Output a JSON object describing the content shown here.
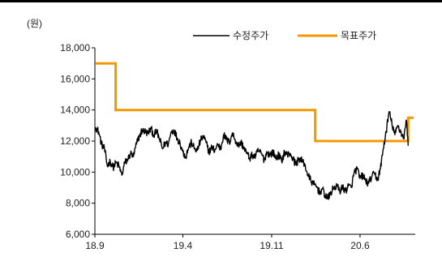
{
  "chart_data": {
    "type": "line",
    "unit_label": "(원)",
    "title": "",
    "xlabel": "",
    "ylabel": "",
    "ylim": [
      6000,
      18000
    ],
    "y_ticks": [
      6000,
      8000,
      10000,
      12000,
      14000,
      16000,
      18000
    ],
    "y_tick_labels": [
      "6,000",
      "8,000",
      "10,000",
      "12,000",
      "14,000",
      "16,000",
      "18,000"
    ],
    "x_ticks": [
      "18.9",
      "19.4",
      "19.11",
      "20.6"
    ],
    "legend_position": "top-right",
    "grid": false,
    "series": [
      {
        "name": "수정주가",
        "color": "#000000",
        "points": [
          [
            "2018-09-03",
            12900
          ],
          [
            "2018-09-10",
            12600
          ],
          [
            "2018-09-17",
            11800
          ],
          [
            "2018-09-24",
            11500
          ],
          [
            "2018-10-01",
            10400
          ],
          [
            "2018-10-08",
            10700
          ],
          [
            "2018-10-15",
            10300
          ],
          [
            "2018-10-22",
            10600
          ],
          [
            "2018-10-29",
            10400
          ],
          [
            "2018-11-05",
            9800
          ],
          [
            "2018-11-12",
            10600
          ],
          [
            "2018-11-19",
            10800
          ],
          [
            "2018-11-26",
            11200
          ],
          [
            "2018-12-03",
            11000
          ],
          [
            "2018-12-10",
            11800
          ],
          [
            "2018-12-17",
            12300
          ],
          [
            "2018-12-24",
            12700
          ],
          [
            "2019-01-07",
            12500
          ],
          [
            "2019-01-14",
            12800
          ],
          [
            "2019-01-21",
            12400
          ],
          [
            "2019-01-28",
            12600
          ],
          [
            "2019-02-04",
            12100
          ],
          [
            "2019-02-11",
            11500
          ],
          [
            "2019-02-18",
            11900
          ],
          [
            "2019-02-25",
            11800
          ],
          [
            "2019-03-04",
            12600
          ],
          [
            "2019-03-11",
            12700
          ],
          [
            "2019-03-18",
            12200
          ],
          [
            "2019-03-25",
            11900
          ],
          [
            "2019-04-01",
            11300
          ],
          [
            "2019-04-08",
            11000
          ],
          [
            "2019-04-15",
            11600
          ],
          [
            "2019-04-22",
            11900
          ],
          [
            "2019-04-29",
            11500
          ],
          [
            "2019-05-06",
            11400
          ],
          [
            "2019-05-13",
            12000
          ],
          [
            "2019-05-20",
            12300
          ],
          [
            "2019-05-27",
            11900
          ],
          [
            "2019-06-03",
            11300
          ],
          [
            "2019-06-10",
            11600
          ],
          [
            "2019-06-17",
            11400
          ],
          [
            "2019-06-24",
            11800
          ],
          [
            "2019-07-01",
            11500
          ],
          [
            "2019-07-08",
            12400
          ],
          [
            "2019-07-15",
            12100
          ],
          [
            "2019-07-22",
            11900
          ],
          [
            "2019-07-29",
            12500
          ],
          [
            "2019-08-05",
            12100
          ],
          [
            "2019-08-12",
            11700
          ],
          [
            "2019-08-19",
            11900
          ],
          [
            "2019-08-26",
            11600
          ],
          [
            "2019-09-02",
            11200
          ],
          [
            "2019-09-09",
            10900
          ],
          [
            "2019-09-16",
            11100
          ],
          [
            "2019-09-23",
            11000
          ],
          [
            "2019-09-30",
            11400
          ],
          [
            "2019-10-07",
            11200
          ],
          [
            "2019-10-14",
            10800
          ],
          [
            "2019-10-21",
            11300
          ],
          [
            "2019-10-28",
            11100
          ],
          [
            "2019-11-04",
            11300
          ],
          [
            "2019-11-11",
            10900
          ],
          [
            "2019-11-18",
            11100
          ],
          [
            "2019-11-25",
            10700
          ],
          [
            "2019-12-02",
            11300
          ],
          [
            "2019-12-09",
            11100
          ],
          [
            "2019-12-16",
            11200
          ],
          [
            "2019-12-23",
            10800
          ],
          [
            "2019-12-30",
            10500
          ],
          [
            "2020-01-06",
            10900
          ],
          [
            "2020-01-13",
            10700
          ],
          [
            "2020-01-20",
            10500
          ],
          [
            "2020-01-27",
            9800
          ],
          [
            "2020-02-03",
            9500
          ],
          [
            "2020-02-10",
            9200
          ],
          [
            "2020-02-17",
            9100
          ],
          [
            "2020-02-24",
            8700
          ],
          [
            "2020-03-02",
            8900
          ],
          [
            "2020-03-09",
            8500
          ],
          [
            "2020-03-16",
            8300
          ],
          [
            "2020-03-23",
            8700
          ],
          [
            "2020-03-30",
            9000
          ],
          [
            "2020-04-06",
            9100
          ],
          [
            "2020-04-13",
            8800
          ],
          [
            "2020-04-20",
            9000
          ],
          [
            "2020-04-27",
            8800
          ],
          [
            "2020-05-04",
            9100
          ],
          [
            "2020-05-11",
            9000
          ],
          [
            "2020-05-18",
            10000
          ],
          [
            "2020-05-25",
            10200
          ],
          [
            "2020-06-01",
            9600
          ],
          [
            "2020-06-08",
            9800
          ],
          [
            "2020-06-15",
            9400
          ],
          [
            "2020-06-22",
            9300
          ],
          [
            "2020-06-29",
            9700
          ],
          [
            "2020-07-06",
            9900
          ],
          [
            "2020-07-13",
            9500
          ],
          [
            "2020-07-20",
            10200
          ],
          [
            "2020-07-27",
            11500
          ],
          [
            "2020-08-03",
            12600
          ],
          [
            "2020-08-10",
            13900
          ],
          [
            "2020-08-17",
            13100
          ],
          [
            "2020-08-24",
            12400
          ],
          [
            "2020-08-31",
            13000
          ],
          [
            "2020-09-07",
            12600
          ],
          [
            "2020-09-14",
            12200
          ],
          [
            "2020-09-21",
            13300
          ],
          [
            "2020-09-25",
            11700
          ]
        ]
      },
      {
        "name": "목표주가",
        "color": "#f39800",
        "points": [
          [
            "2018-09-03",
            17000
          ],
          [
            "2018-10-21",
            17000
          ],
          [
            "2018-10-21",
            14000
          ],
          [
            "2020-02-14",
            14000
          ],
          [
            "2020-02-14",
            12000
          ],
          [
            "2020-09-25",
            12000
          ],
          [
            "2020-09-25",
            13500
          ],
          [
            "2020-10-08",
            13500
          ]
        ]
      }
    ]
  }
}
